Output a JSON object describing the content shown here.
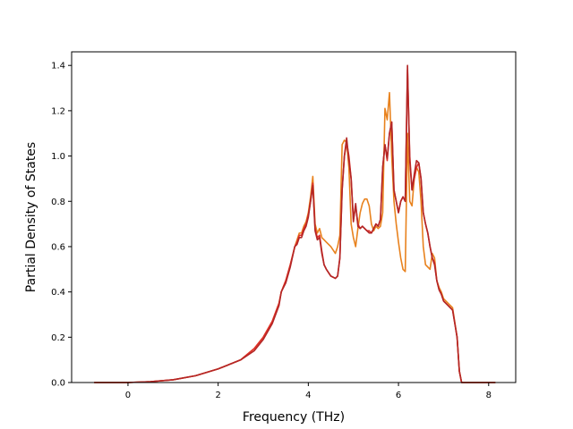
{
  "chart_data": {
    "type": "line",
    "title": "",
    "xlabel": "Frequency (THz)",
    "ylabel": "Partial Density of States",
    "xlim": [
      -1.25,
      8.6
    ],
    "ylim": [
      0.0,
      1.46
    ],
    "xticks": [
      0,
      2,
      4,
      6,
      8
    ],
    "yticks": [
      0.0,
      0.2,
      0.4,
      0.6,
      0.8,
      1.0,
      1.2,
      1.4
    ],
    "xtick_labels": [
      "0",
      "2",
      "4",
      "6",
      "8"
    ],
    "ytick_labels": [
      "0.0",
      "0.2",
      "0.4",
      "0.6",
      "0.8",
      "1.0",
      "1.2",
      "1.4"
    ],
    "grid": false,
    "legend": "none",
    "series": [
      {
        "color": "#e8821e",
        "x": [
          -0.75,
          0.0,
          0.5,
          1.0,
          1.5,
          2.0,
          2.5,
          2.8,
          3.0,
          3.2,
          3.35,
          3.4,
          3.5,
          3.6,
          3.7,
          3.75,
          3.8,
          3.85,
          3.9,
          3.95,
          4.0,
          4.05,
          4.1,
          4.15,
          4.2,
          4.25,
          4.3,
          4.35,
          4.4,
          4.5,
          4.6,
          4.65,
          4.7,
          4.75,
          4.8,
          4.85,
          4.9,
          4.95,
          5.0,
          5.05,
          5.1,
          5.15,
          5.2,
          5.25,
          5.3,
          5.35,
          5.4,
          5.45,
          5.5,
          5.55,
          5.6,
          5.65,
          5.7,
          5.75,
          5.8,
          5.85,
          5.9,
          5.95,
          6.0,
          6.05,
          6.1,
          6.15,
          6.2,
          6.25,
          6.3,
          6.35,
          6.4,
          6.45,
          6.5,
          6.55,
          6.6,
          6.65,
          6.7,
          6.75,
          6.8,
          6.85,
          6.9,
          6.95,
          7.0,
          7.1,
          7.2,
          7.3,
          7.35,
          7.4,
          7.45,
          7.5,
          8.15
        ],
        "values": [
          0.0,
          0.0,
          0.004,
          0.012,
          0.03,
          0.06,
          0.1,
          0.15,
          0.2,
          0.27,
          0.35,
          0.4,
          0.45,
          0.52,
          0.6,
          0.63,
          0.66,
          0.66,
          0.69,
          0.71,
          0.75,
          0.82,
          0.91,
          0.7,
          0.66,
          0.68,
          0.64,
          0.63,
          0.62,
          0.6,
          0.57,
          0.6,
          0.65,
          1.05,
          1.07,
          1.06,
          0.95,
          0.7,
          0.64,
          0.6,
          0.68,
          0.75,
          0.79,
          0.81,
          0.81,
          0.78,
          0.7,
          0.67,
          0.69,
          0.68,
          0.69,
          0.75,
          1.21,
          1.16,
          1.28,
          1.0,
          0.8,
          0.7,
          0.62,
          0.55,
          0.5,
          0.49,
          1.1,
          0.8,
          0.78,
          0.9,
          0.95,
          0.93,
          0.8,
          0.6,
          0.52,
          0.51,
          0.5,
          0.57,
          0.55,
          0.45,
          0.42,
          0.4,
          0.37,
          0.35,
          0.33,
          0.2,
          0.05,
          0.0,
          0.0,
          0.0,
          0.0
        ]
      },
      {
        "color": "#e0302a",
        "x": [
          -0.75,
          0.0,
          0.5,
          1.0,
          1.5,
          2.0,
          2.5,
          2.8,
          3.0,
          3.2,
          3.35,
          3.4,
          3.5,
          3.6,
          3.7,
          3.75,
          3.8,
          3.85,
          3.9,
          3.95,
          4.0,
          4.05,
          4.1,
          4.15,
          4.2,
          4.25,
          4.3,
          4.35,
          4.4,
          4.5,
          4.6,
          4.65,
          4.7,
          4.75,
          4.8,
          4.85,
          4.9,
          4.95,
          5.0,
          5.05,
          5.1,
          5.15,
          5.2,
          5.25,
          5.3,
          5.35,
          5.4,
          5.45,
          5.5,
          5.55,
          5.6,
          5.65,
          5.7,
          5.75,
          5.8,
          5.85,
          5.9,
          5.95,
          6.0,
          6.05,
          6.1,
          6.15,
          6.2,
          6.25,
          6.3,
          6.35,
          6.4,
          6.45,
          6.5,
          6.55,
          6.6,
          6.65,
          6.7,
          6.75,
          6.8,
          6.85,
          6.9,
          6.95,
          7.0,
          7.1,
          7.2,
          7.3,
          7.35,
          7.4,
          7.45,
          7.5,
          8.15
        ],
        "values": [
          0.0,
          0.0,
          0.004,
          0.012,
          0.03,
          0.06,
          0.1,
          0.15,
          0.2,
          0.27,
          0.35,
          0.4,
          0.45,
          0.52,
          0.6,
          0.62,
          0.65,
          0.65,
          0.68,
          0.7,
          0.74,
          0.8,
          0.88,
          0.68,
          0.64,
          0.65,
          0.58,
          0.52,
          0.5,
          0.47,
          0.46,
          0.47,
          0.55,
          0.85,
          1.0,
          1.06,
          1.0,
          0.9,
          0.72,
          0.78,
          0.7,
          0.68,
          0.69,
          0.68,
          0.67,
          0.67,
          0.66,
          0.68,
          0.7,
          0.69,
          0.72,
          0.95,
          1.05,
          0.98,
          1.1,
          1.15,
          0.85,
          0.8,
          0.75,
          0.8,
          0.82,
          0.8,
          1.38,
          1.0,
          0.85,
          0.9,
          0.95,
          0.97,
          0.9,
          0.75,
          0.7,
          0.66,
          0.6,
          0.55,
          0.53,
          0.45,
          0.41,
          0.39,
          0.36,
          0.34,
          0.32,
          0.2,
          0.05,
          0.0,
          0.0,
          0.0,
          0.0
        ]
      },
      {
        "color": "#b32626",
        "x": [
          -0.75,
          0.0,
          0.5,
          1.0,
          1.5,
          2.0,
          2.5,
          2.8,
          3.0,
          3.2,
          3.35,
          3.4,
          3.5,
          3.6,
          3.7,
          3.75,
          3.8,
          3.85,
          3.9,
          3.95,
          4.0,
          4.05,
          4.1,
          4.15,
          4.2,
          4.25,
          4.3,
          4.35,
          4.4,
          4.5,
          4.6,
          4.65,
          4.7,
          4.75,
          4.8,
          4.85,
          4.9,
          4.95,
          5.0,
          5.05,
          5.1,
          5.15,
          5.2,
          5.25,
          5.3,
          5.35,
          5.4,
          5.45,
          5.5,
          5.55,
          5.6,
          5.65,
          5.7,
          5.75,
          5.8,
          5.85,
          5.9,
          5.95,
          6.0,
          6.05,
          6.1,
          6.15,
          6.2,
          6.25,
          6.3,
          6.35,
          6.4,
          6.45,
          6.5,
          6.55,
          6.6,
          6.65,
          6.7,
          6.75,
          6.8,
          6.85,
          6.9,
          6.95,
          7.0,
          7.1,
          7.2,
          7.3,
          7.35,
          7.4,
          7.45,
          7.5,
          8.15
        ],
        "values": [
          0.0,
          0.0,
          0.004,
          0.012,
          0.03,
          0.06,
          0.1,
          0.14,
          0.19,
          0.26,
          0.34,
          0.4,
          0.44,
          0.51,
          0.6,
          0.61,
          0.64,
          0.64,
          0.67,
          0.69,
          0.73,
          0.8,
          0.87,
          0.67,
          0.63,
          0.64,
          0.57,
          0.52,
          0.5,
          0.47,
          0.46,
          0.47,
          0.55,
          0.85,
          1.0,
          1.08,
          0.98,
          0.9,
          0.71,
          0.79,
          0.69,
          0.68,
          0.69,
          0.68,
          0.67,
          0.66,
          0.66,
          0.68,
          0.7,
          0.69,
          0.72,
          0.95,
          1.05,
          0.99,
          1.1,
          1.15,
          0.85,
          0.8,
          0.75,
          0.8,
          0.82,
          0.8,
          1.4,
          0.98,
          0.85,
          0.92,
          0.98,
          0.97,
          0.9,
          0.75,
          0.7,
          0.66,
          0.6,
          0.55,
          0.52,
          0.45,
          0.41,
          0.39,
          0.36,
          0.34,
          0.32,
          0.2,
          0.05,
          0.0,
          0.0,
          0.0,
          0.0
        ]
      }
    ]
  }
}
